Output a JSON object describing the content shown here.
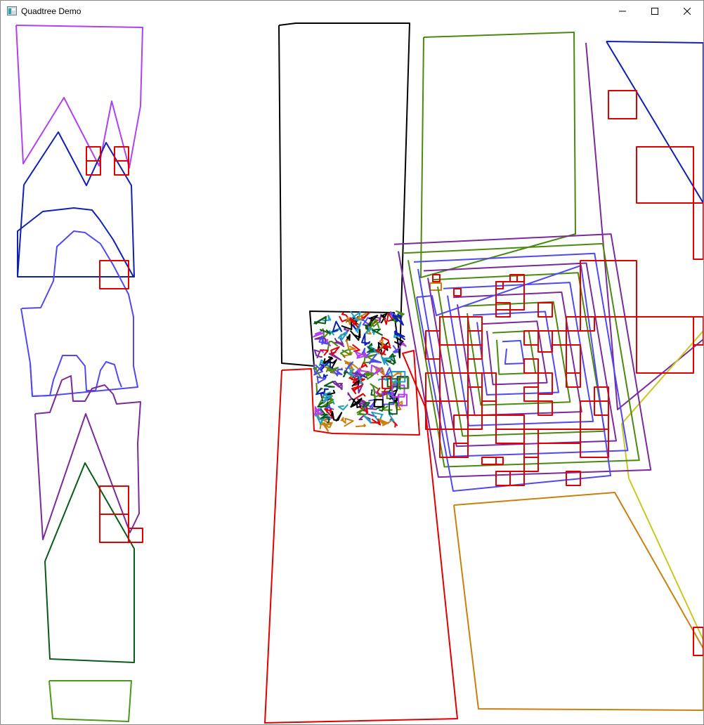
{
  "window": {
    "title": "Quadtree Demo",
    "icon": "app-window-icon",
    "controls": {
      "minimize_icon": "minimize-icon",
      "maximize_icon": "maximize-icon",
      "close_icon": "close-icon"
    }
  },
  "colors": {
    "quad_node": "#e00000",
    "violet": "#b040f0",
    "navy": "#1020b0",
    "blue": "#5048f0",
    "purple": "#7a2a9a",
    "dark_green": "#0a5a1a",
    "green": "#4a9a18",
    "black": "#000000",
    "red": "#e00000",
    "olive_green": "#4a8a10",
    "orange": "#c88010",
    "yellow": "#c8c820"
  }
}
